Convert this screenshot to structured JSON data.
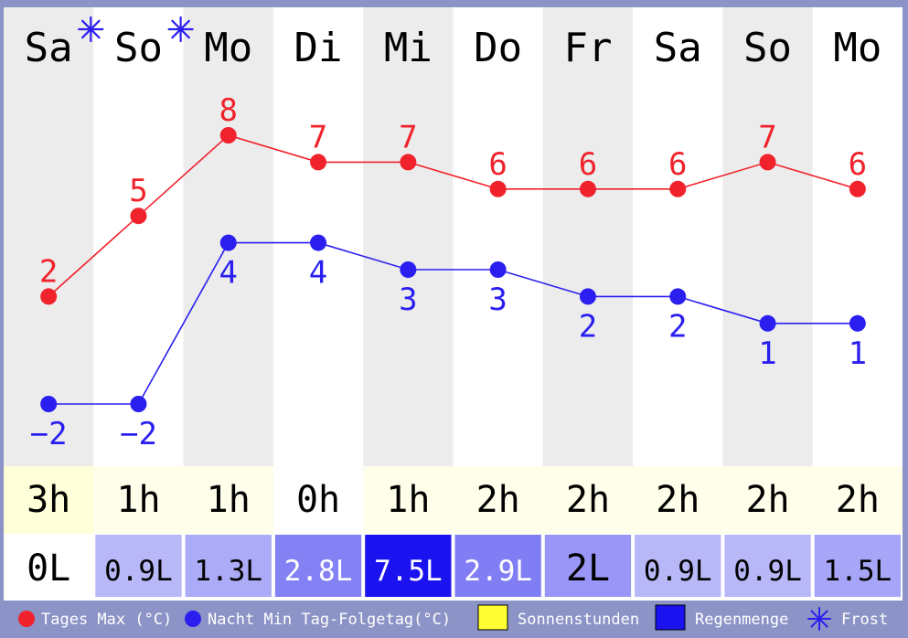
{
  "chart_data": {
    "type": "line",
    "categories": [
      "Sa",
      "So",
      "Mo",
      "Di",
      "Mi",
      "Do",
      "Fr",
      "Sa",
      "So",
      "Mo"
    ],
    "frost": [
      true,
      true,
      false,
      false,
      false,
      false,
      false,
      false,
      false,
      false
    ],
    "series": [
      {
        "name": "Tages Max (°C)",
        "color": "#f0232d",
        "values": [
          2,
          5,
          8,
          7,
          7,
          6,
          6,
          6,
          7,
          6
        ]
      },
      {
        "name": "Nacht Min Tag-Folgetag(°C)",
        "color": "#2b1ff0",
        "values": [
          -2,
          -2,
          4,
          4,
          3,
          3,
          2,
          2,
          1,
          1
        ]
      }
    ],
    "ylim": [
      -4,
      10
    ],
    "sunshine": {
      "name": "Sonnenstunden",
      "values": [
        3,
        1,
        1,
        0,
        1,
        2,
        2,
        2,
        2,
        2
      ],
      "labels": [
        "3h",
        "1h",
        "1h",
        "0h",
        "1h",
        "2h",
        "2h",
        "2h",
        "2h",
        "2h"
      ]
    },
    "rain": {
      "name": "Regenmenge",
      "values": [
        0,
        0.9,
        1.3,
        2.8,
        7.5,
        2.9,
        2,
        0.9,
        0.9,
        1.5
      ],
      "labels": [
        "0L",
        "0.9L",
        "1.3L",
        "2.8L",
        "7.5L",
        "2.9L",
        "2L",
        "0.9L",
        "0.9L",
        "1.5L"
      ]
    },
    "legend": [
      {
        "label": "Tages Max (°C)",
        "symbol": "dot",
        "color": "#f0232d"
      },
      {
        "label": "Nacht Min Tag-Folgetag(°C)",
        "symbol": "dot",
        "color": "#2b1ff0"
      },
      {
        "label": "Sonnenstunden",
        "symbol": "square",
        "color": "#ffff33"
      },
      {
        "label": "Regenmenge",
        "symbol": "square",
        "color": "#1a13f0"
      },
      {
        "label": "Frost",
        "symbol": "asterisk",
        "color": "#2b1ff0"
      }
    ]
  }
}
